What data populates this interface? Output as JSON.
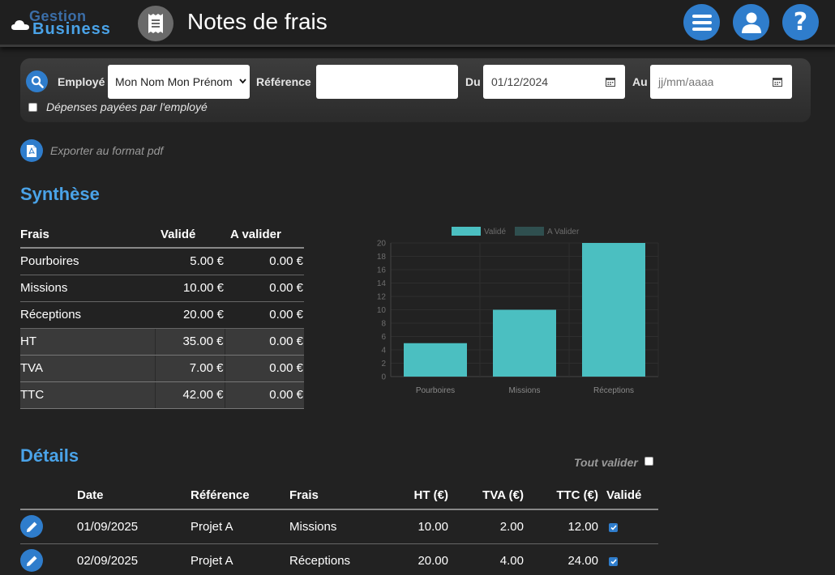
{
  "header": {
    "logo_top": "Gestion",
    "logo_bottom": "Business",
    "title": "Notes de frais",
    "icons": [
      "receipt-icon",
      "menu-icon",
      "user-icon",
      "help-icon"
    ]
  },
  "filter": {
    "employe_label": "Employé",
    "employe_value": "Mon Nom Mon Prénom",
    "reference_label": "Référence",
    "reference_value": "",
    "du_label": "Du",
    "du_value": "01/12/2024",
    "au_label": "Au",
    "au_placeholder": "jj/mm/aaaa",
    "checkbox_label": "Dépenses payées par l'employé",
    "checkbox_checked": false
  },
  "export": {
    "label": "Exporter au format pdf"
  },
  "synthese": {
    "title": "Synthèse",
    "headers": [
      "Frais",
      "Validé",
      "A valider"
    ],
    "rows": [
      {
        "frais": "Pourboires",
        "valide": "5.00 €",
        "avalider": "0.00 €"
      },
      {
        "frais": "Missions",
        "valide": "10.00 €",
        "avalider": "0.00 €"
      },
      {
        "frais": "Réceptions",
        "valide": "20.00 €",
        "avalider": "0.00 €"
      }
    ],
    "totals": [
      {
        "frais": "HT",
        "valide": "35.00 €",
        "avalider": "0.00 €"
      },
      {
        "frais": "TVA",
        "valide": "7.00 €",
        "avalider": "0.00 €"
      },
      {
        "frais": "TTC",
        "valide": "42.00 €",
        "avalider": "0.00 €"
      }
    ]
  },
  "chart_data": {
    "type": "bar",
    "categories": [
      "Pourboires",
      "Missions",
      "Réceptions"
    ],
    "series": [
      {
        "name": "Validé",
        "values": [
          5,
          10,
          20
        ],
        "color": "#4bbfc1"
      },
      {
        "name": "A Valider",
        "values": [
          0,
          0,
          0
        ],
        "color": "#2f4f4f"
      }
    ],
    "ylim": [
      0,
      20
    ],
    "yticks": [
      0,
      2,
      4,
      6,
      8,
      10,
      12,
      14,
      16,
      18,
      20
    ],
    "legend": "top"
  },
  "details": {
    "title": "Détails",
    "tout_valider_label": "Tout valider",
    "headers": [
      "Date",
      "Référence",
      "Frais",
      "HT (€)",
      "TVA (€)",
      "TTC (€)",
      "Validé"
    ],
    "rows": [
      {
        "date": "01/09/2025",
        "reference": "Projet A",
        "frais": "Missions",
        "ht": "10.00",
        "tva": "2.00",
        "ttc": "12.00",
        "valide": true
      },
      {
        "date": "02/09/2025",
        "reference": "Projet A",
        "frais": "Réceptions",
        "ht": "20.00",
        "tva": "4.00",
        "ttc": "24.00",
        "valide": true
      }
    ]
  },
  "colors": {
    "accent": "#2f7dcc",
    "title_blue": "#4aa3e8",
    "bar": "#4bbfc1"
  }
}
